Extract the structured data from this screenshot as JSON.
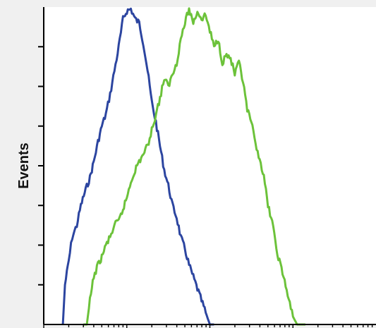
{
  "chart_data": {
    "type": "line",
    "title": "",
    "xlabel": "",
    "ylabel": "Events",
    "xscale": "log",
    "xlim": [
      1,
      10000
    ],
    "ylim": [
      0,
      8
    ],
    "grid": false,
    "legend": "none",
    "series": [
      {
        "color": "#2c45a0",
        "x": [
          1.7,
          1.8,
          2.0,
          2.2,
          2.5,
          2.8,
          3.2,
          3.6,
          4.0,
          4.5,
          5.0,
          5.6,
          6.3,
          7.1,
          8.0,
          9.0,
          10.0,
          11.2,
          12.6,
          14.1,
          15.8,
          17.8,
          20.0,
          22.4,
          25.1,
          28.2,
          31.6,
          35.5,
          39.8,
          44.7,
          50.1,
          56.2,
          63.1,
          70.8,
          79.4,
          89.1,
          100.0,
          112.2
        ],
        "y": [
          0.0,
          1.0,
          1.6,
          2.2,
          2.5,
          3.0,
          3.4,
          3.7,
          4.1,
          4.6,
          5.0,
          5.3,
          5.8,
          6.4,
          7.0,
          7.7,
          7.9,
          7.95,
          7.7,
          7.6,
          7.1,
          6.4,
          5.6,
          5.1,
          4.5,
          3.9,
          3.5,
          3.0,
          2.7,
          2.2,
          1.9,
          1.5,
          1.2,
          0.9,
          0.6,
          0.3,
          0.0,
          0.0
        ]
      },
      {
        "color": "#6cc23a",
        "x": [
          3.0,
          3.3,
          3.6,
          4.0,
          4.5,
          5.0,
          5.6,
          6.3,
          7.1,
          8.0,
          9.0,
          10.0,
          11.2,
          12.6,
          14.1,
          15.8,
          17.8,
          20.0,
          22.4,
          25.1,
          28.2,
          31.6,
          35.5,
          39.8,
          44.7,
          50.1,
          56.2,
          63.1,
          70.8,
          79.4,
          89.1,
          100.0,
          112.2,
          125.9,
          141.3,
          158.5,
          177.8,
          199.5,
          223.9,
          251.2,
          281.8,
          316.2,
          354.8,
          398.1,
          446.7,
          501.2,
          562.3,
          631.0,
          707.9,
          794.3,
          891.3,
          1000.0,
          1122.0,
          1259.0,
          1412.5
        ],
        "y": [
          0.0,
          0.0,
          0.6,
          1.2,
          1.5,
          1.7,
          2.0,
          2.2,
          2.5,
          2.6,
          2.9,
          3.2,
          3.6,
          3.9,
          4.1,
          4.3,
          4.5,
          4.9,
          5.3,
          5.7,
          6.2,
          6.0,
          6.3,
          6.6,
          7.2,
          7.6,
          7.95,
          7.6,
          7.9,
          7.7,
          7.8,
          7.4,
          7.0,
          7.2,
          6.6,
          6.8,
          6.7,
          6.3,
          6.6,
          6.1,
          5.4,
          5.1,
          4.5,
          4.2,
          3.7,
          3.0,
          2.6,
          1.9,
          1.5,
          1.1,
          0.6,
          0.2,
          0.0,
          0.0,
          0.0
        ]
      }
    ]
  }
}
